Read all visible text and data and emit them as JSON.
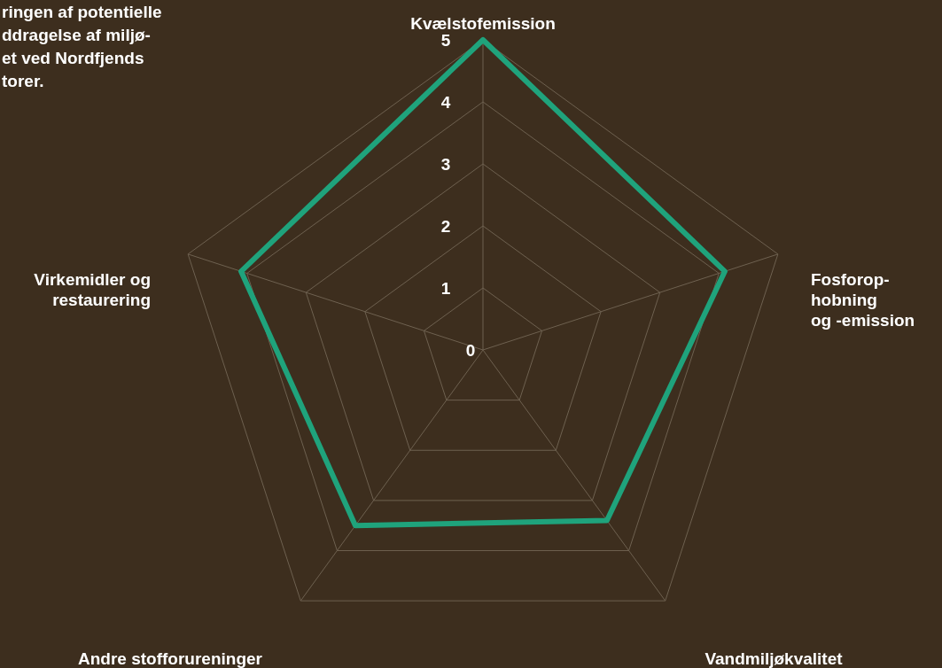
{
  "chart_data": {
    "type": "radar",
    "title": "ringen af potentielle\nddragelse af miljø-\net ved Nordfjends\ntorer.",
    "categories": [
      "Kvælstofemission",
      "Fosforop-\nhobning\nog -emission",
      "Vandmiljøkvalitet",
      "Andre stofforureninger",
      "Virkemidler og\nrestaurering"
    ],
    "series": [
      {
        "color": "#1fa37c",
        "values": [
          5,
          4.1,
          3.4,
          3.5,
          4.1
        ]
      }
    ],
    "ylim": [
      0,
      5
    ],
    "yticks": [
      0,
      1,
      2,
      3,
      4,
      5
    ],
    "grid": true,
    "marker": "none"
  }
}
